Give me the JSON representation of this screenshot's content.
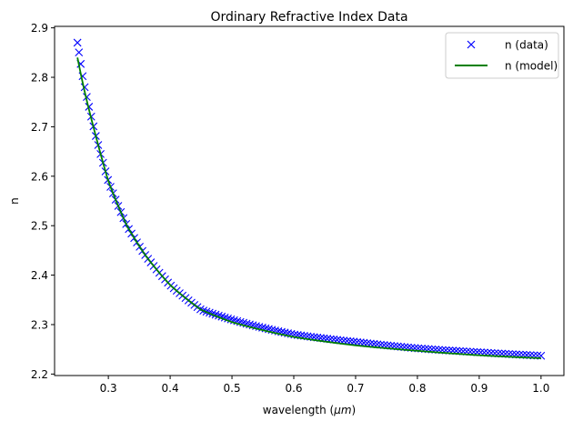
{
  "chart_data": {
    "type": "line",
    "title": "Ordinary Refractive Index Data",
    "xlabel_prefix": "wavelength (",
    "xlabel_symbol": "μm",
    "xlabel_suffix": ")",
    "ylabel": "n",
    "xlim": [
      0.213,
      1.037
    ],
    "ylim": [
      2.197,
      2.903
    ],
    "xticks": [
      0.3,
      0.4,
      0.5,
      0.6,
      0.7,
      0.8,
      0.9,
      1.0
    ],
    "xtick_labels": [
      "0.3",
      "0.4",
      "0.5",
      "0.6",
      "0.7",
      "0.8",
      "0.9",
      "1.0"
    ],
    "yticks": [
      2.2,
      2.3,
      2.4,
      2.5,
      2.6,
      2.7,
      2.8,
      2.9
    ],
    "ytick_labels": [
      "2.2",
      "2.3",
      "2.4",
      "2.5",
      "2.6",
      "2.7",
      "2.8",
      "2.9"
    ],
    "grid": false,
    "legend_position": "top-right",
    "series": [
      {
        "name": "n (data)",
        "style": "markers-x",
        "color": "#0000ff",
        "x_range": [
          0.25,
          1.0
        ],
        "x": [
          0.25,
          0.26,
          0.28,
          0.3,
          0.33,
          0.36,
          0.4,
          0.45,
          0.5,
          0.6,
          0.7,
          0.8,
          0.9,
          1.0
        ],
        "y": [
          2.87,
          2.79,
          2.68,
          2.59,
          2.5,
          2.44,
          2.38,
          2.33,
          2.31,
          2.28,
          2.265,
          2.252,
          2.244,
          2.237
        ]
      },
      {
        "name": "n (model)",
        "style": "line",
        "color": "#008000",
        "x": [
          0.25,
          0.26,
          0.28,
          0.3,
          0.33,
          0.36,
          0.4,
          0.45,
          0.5,
          0.6,
          0.7,
          0.8,
          0.9,
          1.0
        ],
        "y": [
          2.84,
          2.78,
          2.68,
          2.59,
          2.5,
          2.44,
          2.38,
          2.33,
          2.305,
          2.275,
          2.258,
          2.247,
          2.238,
          2.232
        ]
      }
    ]
  }
}
